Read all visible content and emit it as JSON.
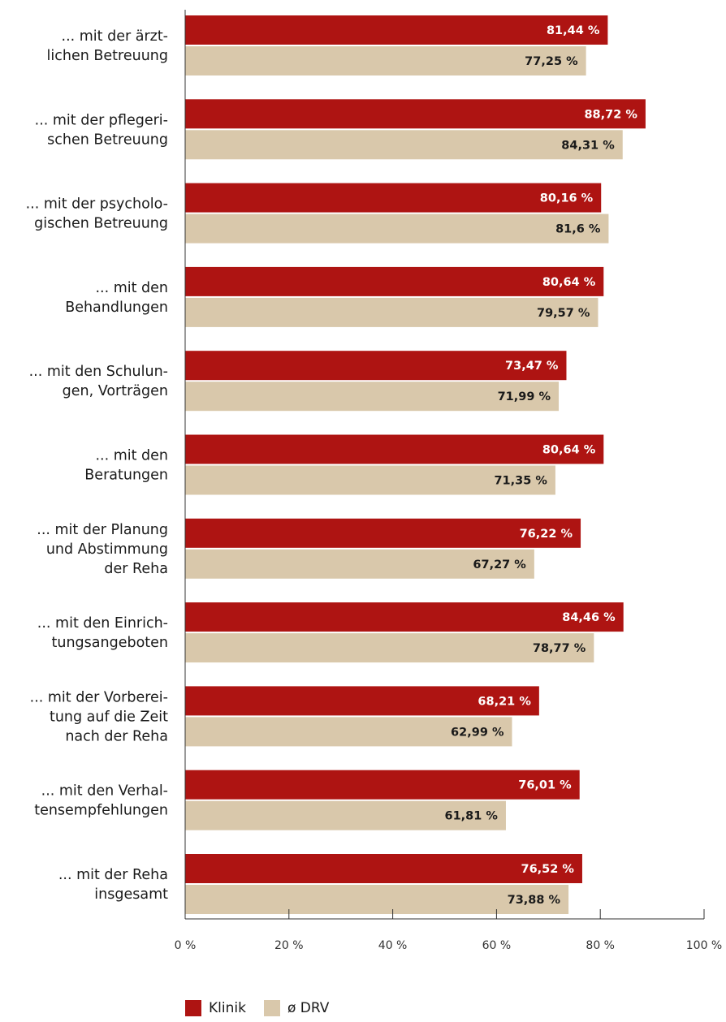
{
  "chart_data": {
    "type": "bar",
    "orientation": "horizontal",
    "categories": [
      [
        "... mit der ärzt-",
        "lichen Betreuung"
      ],
      [
        "... mit der pflegeri-",
        "schen Betreuung"
      ],
      [
        "... mit der psycholo-",
        "gischen Betreuung"
      ],
      [
        "... mit den",
        "Behandlungen"
      ],
      [
        "... mit den Schulun-",
        "gen, Vorträgen"
      ],
      [
        "... mit den",
        "Beratungen"
      ],
      [
        "... mit der Planung",
        "und Abstimmung",
        "der Reha"
      ],
      [
        "... mit den Einrich-",
        "tungsangeboten"
      ],
      [
        "... mit der Vorberei-",
        "tung auf die Zeit",
        "nach der Reha"
      ],
      [
        "... mit den Verhal-",
        "tensempfehlungen"
      ],
      [
        "... mit der Reha",
        "insgesamt"
      ]
    ],
    "series": [
      {
        "name": "Klinik",
        "color": "#ae1412",
        "label_color": "#ffffff",
        "values": [
          81.44,
          88.72,
          80.16,
          80.64,
          73.47,
          80.64,
          76.22,
          84.46,
          68.21,
          76.01,
          76.52
        ],
        "labels": [
          "81,44 %",
          "88,72 %",
          "80,16 %",
          "80,64 %",
          "73,47 %",
          "80,64 %",
          "76,22 %",
          "84,46 %",
          "68,21 %",
          "76,01 %",
          "76,52 %"
        ]
      },
      {
        "name": "ø DRV",
        "color": "#d9c8ab",
        "label_color": "#1a1a1a",
        "values": [
          77.25,
          84.31,
          81.6,
          79.57,
          71.99,
          71.35,
          67.27,
          78.77,
          62.99,
          61.81,
          73.88
        ],
        "labels": [
          "77,25 %",
          "84,31 %",
          "81,6 %",
          "79,57 %",
          "71,99 %",
          "71,35 %",
          "67,27 %",
          "78,77 %",
          "62,99 %",
          "61,81 %",
          "73,88 %"
        ]
      }
    ],
    "xlim": [
      0,
      100
    ],
    "xticks": [
      "0 %",
      "20 %",
      "40 %",
      "60 %",
      "80 %",
      "100 %"
    ],
    "xtick_values": [
      0,
      20,
      40,
      60,
      80,
      100
    ],
    "grid": false,
    "legend_position": "bottom-left"
  },
  "legend": {
    "items": [
      {
        "label": "Klinik",
        "color": "#ae1412"
      },
      {
        "label": "ø DRV",
        "color": "#d9c8ab"
      }
    ]
  }
}
